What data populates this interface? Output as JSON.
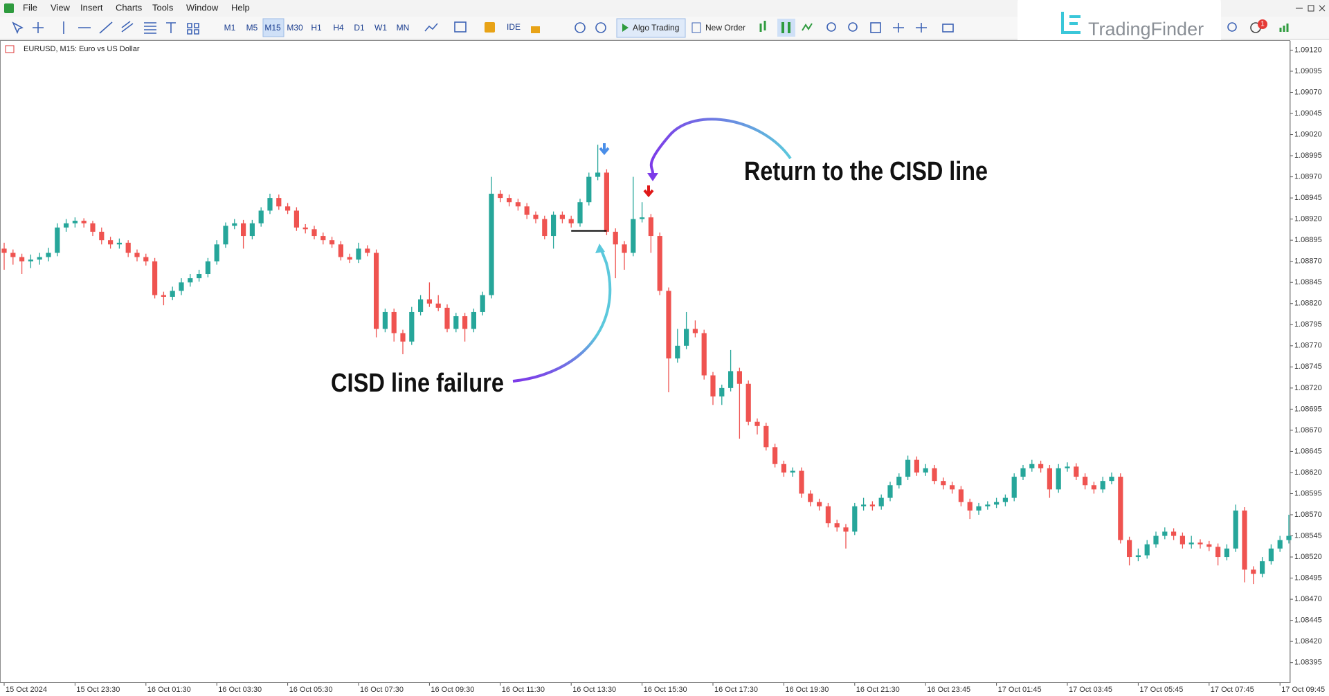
{
  "menu": [
    "File",
    "View",
    "Insert",
    "Charts",
    "Tools",
    "Window",
    "Help"
  ],
  "toolbar": {
    "timeframes": [
      "M1",
      "M5",
      "M15",
      "M30",
      "H1",
      "H4",
      "D1",
      "W1",
      "MN"
    ],
    "ide": "IDE",
    "algo_trading": "Algo Trading",
    "new_order": "New Order"
  },
  "logo": "TradingFinder",
  "notifications": 1,
  "chart_data": {
    "type": "candlestick",
    "title": "EURUSD, M15: Euro vs US Dollar",
    "categories": [
      "15 Oct 2024",
      null,
      null,
      null,
      null,
      null,
      null,
      null,
      "15 Oct 23:30",
      null,
      null,
      null,
      null,
      null,
      null,
      null,
      "16 Oct 01:30",
      null,
      null,
      null,
      null,
      null,
      null,
      null,
      "16 Oct 03:30",
      null,
      null,
      null,
      null,
      null,
      null,
      null,
      "16 Oct 05:30",
      null,
      null,
      null,
      null,
      null,
      null,
      null,
      "16 Oct 07:30",
      null,
      null,
      null,
      null,
      null,
      null,
      null,
      "16 Oct 09:30",
      null,
      null,
      null,
      null,
      null,
      null,
      null,
      "16 Oct 11:30",
      null,
      null,
      null,
      null,
      null,
      null,
      null,
      "16 Oct 13:30",
      null,
      null,
      null,
      null,
      null,
      null,
      null,
      "16 Oct 15:30",
      null,
      null,
      null,
      null,
      null,
      null,
      null,
      "16 Oct 17:30",
      null,
      null,
      null,
      null,
      null,
      null,
      null,
      "16 Oct 19:30",
      null,
      null,
      null,
      null,
      null,
      null,
      null,
      "16 Oct 21:30",
      null,
      null,
      null,
      null,
      null,
      null,
      null,
      "16 Oct 23:45",
      null,
      null,
      null,
      null,
      null,
      null,
      null,
      "17 Oct 01:45",
      null,
      null,
      null,
      null,
      null,
      null,
      null,
      "17 Oct 03:45",
      null,
      null,
      null,
      null,
      null,
      null,
      null,
      "17 Oct 05:45",
      null,
      null,
      null,
      null,
      null,
      null,
      null,
      "17 Oct 07:45",
      null,
      null,
      null,
      null,
      null,
      null,
      null,
      "17 Oct 09:45",
      null
    ],
    "open": [
      1.08885,
      1.0888,
      1.08875,
      1.0887,
      1.08872,
      1.08875,
      1.0888,
      1.0891,
      1.08915,
      1.08918,
      1.08915,
      1.08905,
      1.08895,
      1.0889,
      1.08892,
      1.0888,
      1.08875,
      1.0887,
      1.0883,
      1.08828,
      1.08835,
      1.08845,
      1.0885,
      1.08855,
      1.0887,
      1.0889,
      1.08912,
      1.08915,
      1.089,
      1.08915,
      1.0893,
      1.08945,
      1.08935,
      1.0893,
      1.0891,
      1.08908,
      1.089,
      1.08895,
      1.0889,
      1.08875,
      1.08872,
      1.08885,
      1.0888,
      1.0879,
      1.0881,
      1.08785,
      1.08775,
      1.0881,
      1.08825,
      1.0882,
      1.08815,
      1.0879,
      1.08805,
      1.0879,
      1.0881,
      1.0883,
      1.0895,
      1.08945,
      1.0894,
      1.08935,
      1.08925,
      1.0892,
      1.089,
      1.08925,
      1.0892,
      1.08915,
      1.0894,
      1.0897,
      1.08975,
      1.08905,
      1.0889,
      1.0888,
      1.0892,
      1.08922,
      1.089,
      1.08835,
      1.08755,
      1.0877,
      1.0879,
      1.08785,
      1.08735,
      1.0871,
      1.0872,
      1.0874,
      1.08725,
      1.0868,
      1.08675,
      1.0865,
      1.0863,
      1.0862,
      1.08622,
      1.08595,
      1.08585,
      1.0858,
      1.0856,
      1.08555,
      1.0855,
      1.0858,
      1.08582,
      1.0858,
      1.0859,
      1.08605,
      1.08615,
      1.08635,
      1.0862,
      1.08625,
      1.0861,
      1.08605,
      1.086,
      1.08585,
      1.08575,
      1.0858,
      1.08582,
      1.08585,
      1.0859,
      1.08615,
      1.08625,
      1.0863,
      1.08625,
      1.086,
      1.08625,
      1.08627,
      1.08615,
      1.08605,
      1.086,
      1.0861,
      1.08615,
      1.0854,
      1.0852,
      1.08522,
      1.08535,
      1.08545,
      1.0855,
      1.08545,
      1.08535,
      1.08537,
      1.08535,
      1.08532,
      1.0852,
      1.0853,
      1.08575,
      1.08505,
      1.085,
      1.08515,
      1.0853,
      1.0854
    ],
    "high": [
      1.08892,
      1.08884,
      1.08879,
      1.08878,
      1.0888,
      1.08886,
      1.08915,
      1.0892,
      1.08922,
      1.08921,
      1.08918,
      1.0891,
      1.08899,
      1.08897,
      1.08895,
      1.08884,
      1.08879,
      1.08874,
      1.08834,
      1.0884,
      1.0885,
      1.08855,
      1.0886,
      1.08874,
      1.08895,
      1.08916,
      1.0892,
      1.08919,
      1.08919,
      1.08934,
      1.0895,
      1.08949,
      1.08939,
      1.08934,
      1.08914,
      1.08912,
      1.08904,
      1.08899,
      1.08894,
      1.08879,
      1.08892,
      1.08889,
      1.08884,
      1.08814,
      1.08814,
      1.08789,
      1.08816,
      1.0883,
      1.08845,
      1.0883,
      1.08819,
      1.08809,
      1.08809,
      1.08814,
      1.08834,
      1.0897,
      1.08954,
      1.08949,
      1.08944,
      1.08939,
      1.08929,
      1.08924,
      1.08929,
      1.08929,
      1.08924,
      1.08944,
      1.08975,
      1.09008,
      1.08979,
      1.08909,
      1.08894,
      1.0897,
      1.0894,
      1.08926,
      1.08904,
      1.08839,
      1.0879,
      1.0881,
      1.088,
      1.08789,
      1.08739,
      1.08724,
      1.08765,
      1.08744,
      1.08729,
      1.08684,
      1.08679,
      1.08654,
      1.08634,
      1.08626,
      1.08626,
      1.08599,
      1.08589,
      1.08584,
      1.08564,
      1.08559,
      1.08584,
      1.0859,
      1.08586,
      1.08594,
      1.08609,
      1.08619,
      1.0864,
      1.08639,
      1.0863,
      1.08629,
      1.08614,
      1.08609,
      1.08604,
      1.08589,
      1.08584,
      1.08586,
      1.0859,
      1.08594,
      1.08619,
      1.08629,
      1.08635,
      1.08634,
      1.08629,
      1.0863,
      1.08632,
      1.08631,
      1.08619,
      1.08609,
      1.08615,
      1.0862,
      1.08619,
      1.08544,
      1.0853,
      1.0854,
      1.0855,
      1.08555,
      1.08554,
      1.08549,
      1.08545,
      1.08541,
      1.08539,
      1.08536,
      1.08535,
      1.08582,
      1.08579,
      1.08509,
      1.0852,
      1.08535,
      1.08545,
      1.0857
    ],
    "low": [
      1.0886,
      1.08866,
      1.08855,
      1.08862,
      1.08866,
      1.0887,
      1.08876,
      1.08905,
      1.0891,
      1.0891,
      1.089,
      1.0889,
      1.08885,
      1.08885,
      1.08875,
      1.0887,
      1.08865,
      1.08826,
      1.08818,
      1.08824,
      1.0883,
      1.0884,
      1.08846,
      1.08851,
      1.08866,
      1.08886,
      1.08908,
      1.08885,
      1.08896,
      1.08911,
      1.08926,
      1.08931,
      1.08926,
      1.08906,
      1.08903,
      1.08896,
      1.0889,
      1.08886,
      1.08871,
      1.08868,
      1.08868,
      1.08876,
      1.0878,
      1.08786,
      1.08775,
      1.0876,
      1.08771,
      1.08806,
      1.08816,
      1.08811,
      1.08786,
      1.08786,
      1.08775,
      1.08786,
      1.08806,
      1.08826,
      1.0894,
      1.08935,
      1.0893,
      1.0892,
      1.08915,
      1.08896,
      1.08885,
      1.08915,
      1.0891,
      1.08911,
      1.08936,
      1.08966,
      1.08901,
      1.0885,
      1.0886,
      1.08876,
      1.08916,
      1.0888,
      1.0883,
      1.08715,
      1.0875,
      1.08766,
      1.0878,
      1.0873,
      1.087,
      1.087,
      1.08716,
      1.0866,
      1.08676,
      1.08665,
      1.08646,
      1.08626,
      1.08615,
      1.08615,
      1.0859,
      1.0858,
      1.08575,
      1.08555,
      1.0855,
      1.0853,
      1.08546,
      1.08575,
      1.08575,
      1.08576,
      1.08586,
      1.08601,
      1.08611,
      1.08616,
      1.08616,
      1.08606,
      1.086,
      1.08595,
      1.0858,
      1.08565,
      1.0857,
      1.08576,
      1.08578,
      1.0858,
      1.08586,
      1.08611,
      1.08621,
      1.0862,
      1.0859,
      1.08596,
      1.08621,
      1.08611,
      1.086,
      1.08595,
      1.08596,
      1.08606,
      1.08536,
      1.0851,
      1.08515,
      1.08518,
      1.08531,
      1.08541,
      1.0854,
      1.0853,
      1.0853,
      1.0853,
      1.08527,
      1.0851,
      1.08516,
      1.08526,
      1.0849,
      1.08488,
      1.08496,
      1.08511,
      1.08526,
      1.08536
    ],
    "close": [
      1.0888,
      1.08875,
      1.0887,
      1.08872,
      1.08875,
      1.0888,
      1.0891,
      1.08915,
      1.08918,
      1.08915,
      1.08905,
      1.08895,
      1.0889,
      1.08892,
      1.0888,
      1.08875,
      1.0887,
      1.0883,
      1.08828,
      1.08835,
      1.08845,
      1.0885,
      1.08855,
      1.0887,
      1.0889,
      1.08912,
      1.08915,
      1.089,
      1.08915,
      1.0893,
      1.08945,
      1.08935,
      1.0893,
      1.0891,
      1.08908,
      1.089,
      1.08895,
      1.0889,
      1.08875,
      1.08872,
      1.08885,
      1.0888,
      1.0879,
      1.0881,
      1.08785,
      1.08775,
      1.0881,
      1.08825,
      1.0882,
      1.08815,
      1.0879,
      1.08805,
      1.0879,
      1.0881,
      1.0883,
      1.0895,
      1.08945,
      1.0894,
      1.08935,
      1.08925,
      1.0892,
      1.089,
      1.08925,
      1.0892,
      1.08915,
      1.0894,
      1.0897,
      1.08975,
      1.08905,
      1.0889,
      1.0888,
      1.0892,
      1.08922,
      1.089,
      1.08835,
      1.08755,
      1.0877,
      1.0879,
      1.08785,
      1.08735,
      1.0871,
      1.0872,
      1.0874,
      1.08725,
      1.0868,
      1.08675,
      1.0865,
      1.0863,
      1.0862,
      1.08622,
      1.08595,
      1.08585,
      1.0858,
      1.0856,
      1.08555,
      1.0855,
      1.0858,
      1.08582,
      1.0858,
      1.0859,
      1.08605,
      1.08615,
      1.08635,
      1.0862,
      1.08625,
      1.0861,
      1.08605,
      1.086,
      1.08585,
      1.08575,
      1.0858,
      1.08582,
      1.08585,
      1.0859,
      1.08615,
      1.08625,
      1.0863,
      1.08625,
      1.086,
      1.08625,
      1.08627,
      1.08615,
      1.08605,
      1.086,
      1.0861,
      1.08615,
      1.0854,
      1.0852,
      1.08522,
      1.08535,
      1.08545,
      1.0855,
      1.08545,
      1.08535,
      1.08537,
      1.08535,
      1.08532,
      1.0852,
      1.0853,
      1.08575,
      1.08505,
      1.085,
      1.08515,
      1.0853,
      1.0854,
      1.08545
    ],
    "up_color": "#26a69a",
    "down_color": "#ef5350",
    "ylim": [
      1.08371,
      1.09131
    ],
    "yticks": [
      {
        "value": 1.0912,
        "label": "1.09120"
      },
      1.09095,
      {
        "value": 1.0907,
        "label": "1.09070"
      },
      1.09045,
      {
        "value": 1.0902,
        "label": "1.09020"
      },
      1.08995,
      {
        "value": 1.0897,
        "label": "1.08970"
      },
      1.08945,
      {
        "value": 1.0892,
        "label": "1.08920"
      },
      1.08895,
      {
        "value": 1.0887,
        "label": "1.08870"
      },
      1.08845,
      {
        "value": 1.0882,
        "label": "1.08820"
      },
      1.08795,
      {
        "value": 1.0877,
        "label": "1.08770"
      },
      1.08745,
      {
        "value": 1.0872,
        "label": "1.08720"
      },
      1.08695,
      {
        "value": 1.0867,
        "label": "1.08670"
      },
      1.08645,
      {
        "value": 1.0862,
        "label": "1.08620"
      },
      1.08595,
      {
        "value": 1.0857,
        "label": "1.08570"
      },
      1.08545,
      {
        "value": 1.0852,
        "label": "1.08520"
      },
      1.08495,
      {
        "value": 1.0847,
        "label": "1.08470"
      },
      1.08445,
      {
        "value": 1.0842,
        "label": "1.08420"
      },
      1.08395
    ],
    "grid": false,
    "cisd_level": 1.08906,
    "annotations": [
      "Return to the CISD line",
      "CISD line failure"
    ]
  }
}
